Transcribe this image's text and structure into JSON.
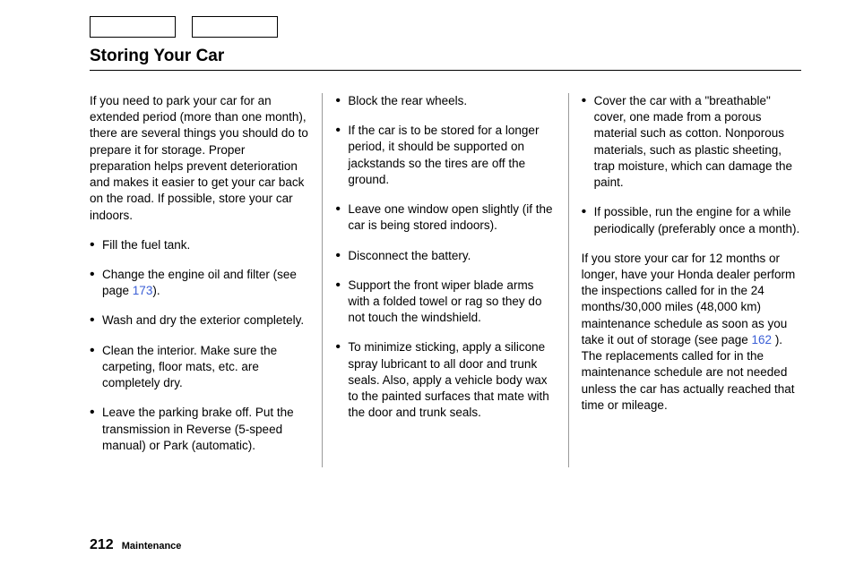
{
  "title": "Storing Your Car",
  "intro": "If you need to park your car for an extended period (more than one month), there are several things you should do to prepare it for storage. Proper preparation helps prevent deterioration and makes it easier to get your car back on the road. If possible, store your car indoors.",
  "col1": {
    "items": [
      "Fill the fuel tank.",
      "Change the engine oil and filter (see page 173).",
      "Wash and dry the exterior completely.",
      "Clean the interior. Make sure the carpeting, floor mats, etc. are completely dry.",
      "Leave the parking brake off. Put the transmission in Reverse (5-speed manual) or Park (automatic)."
    ]
  },
  "col2": {
    "items": [
      "Block the rear wheels.",
      "If the car is to be stored for a longer period, it should be supported on jackstands so the tires are off the ground.",
      "Leave one window open slightly (if the car is being stored indoors).",
      "Disconnect the battery.",
      "Support the front wiper blade arms with a folded towel or rag so they do not touch the windshield.",
      "To minimize sticking, apply a silicone spray lubricant to all door and trunk seals. Also, apply a vehicle body wax to the painted surfaces that mate with the door and trunk seals."
    ]
  },
  "col3": {
    "items": [
      "Cover the car with a \"breathable\" cover, one made from a porous material such as cotton. Nonporous materials, such as plastic sheeting, trap moisture, which can damage the paint.",
      "If possible, run the engine for a while periodically (preferably once a month)."
    ],
    "outro": "If you store your car for 12 months or longer, have your Honda dealer perform the inspections called for in the 24 months/30,000 miles (48,000 km) maintenance schedule as soon as you take it out of storage (see page 162 ). The replacements called for in the maintenance schedule are not needed unless the car has actually reached that time or mileage."
  },
  "links": {
    "oil_page": "173",
    "schedule_page": "162"
  },
  "footer": {
    "page": "212",
    "section": "Maintenance"
  }
}
